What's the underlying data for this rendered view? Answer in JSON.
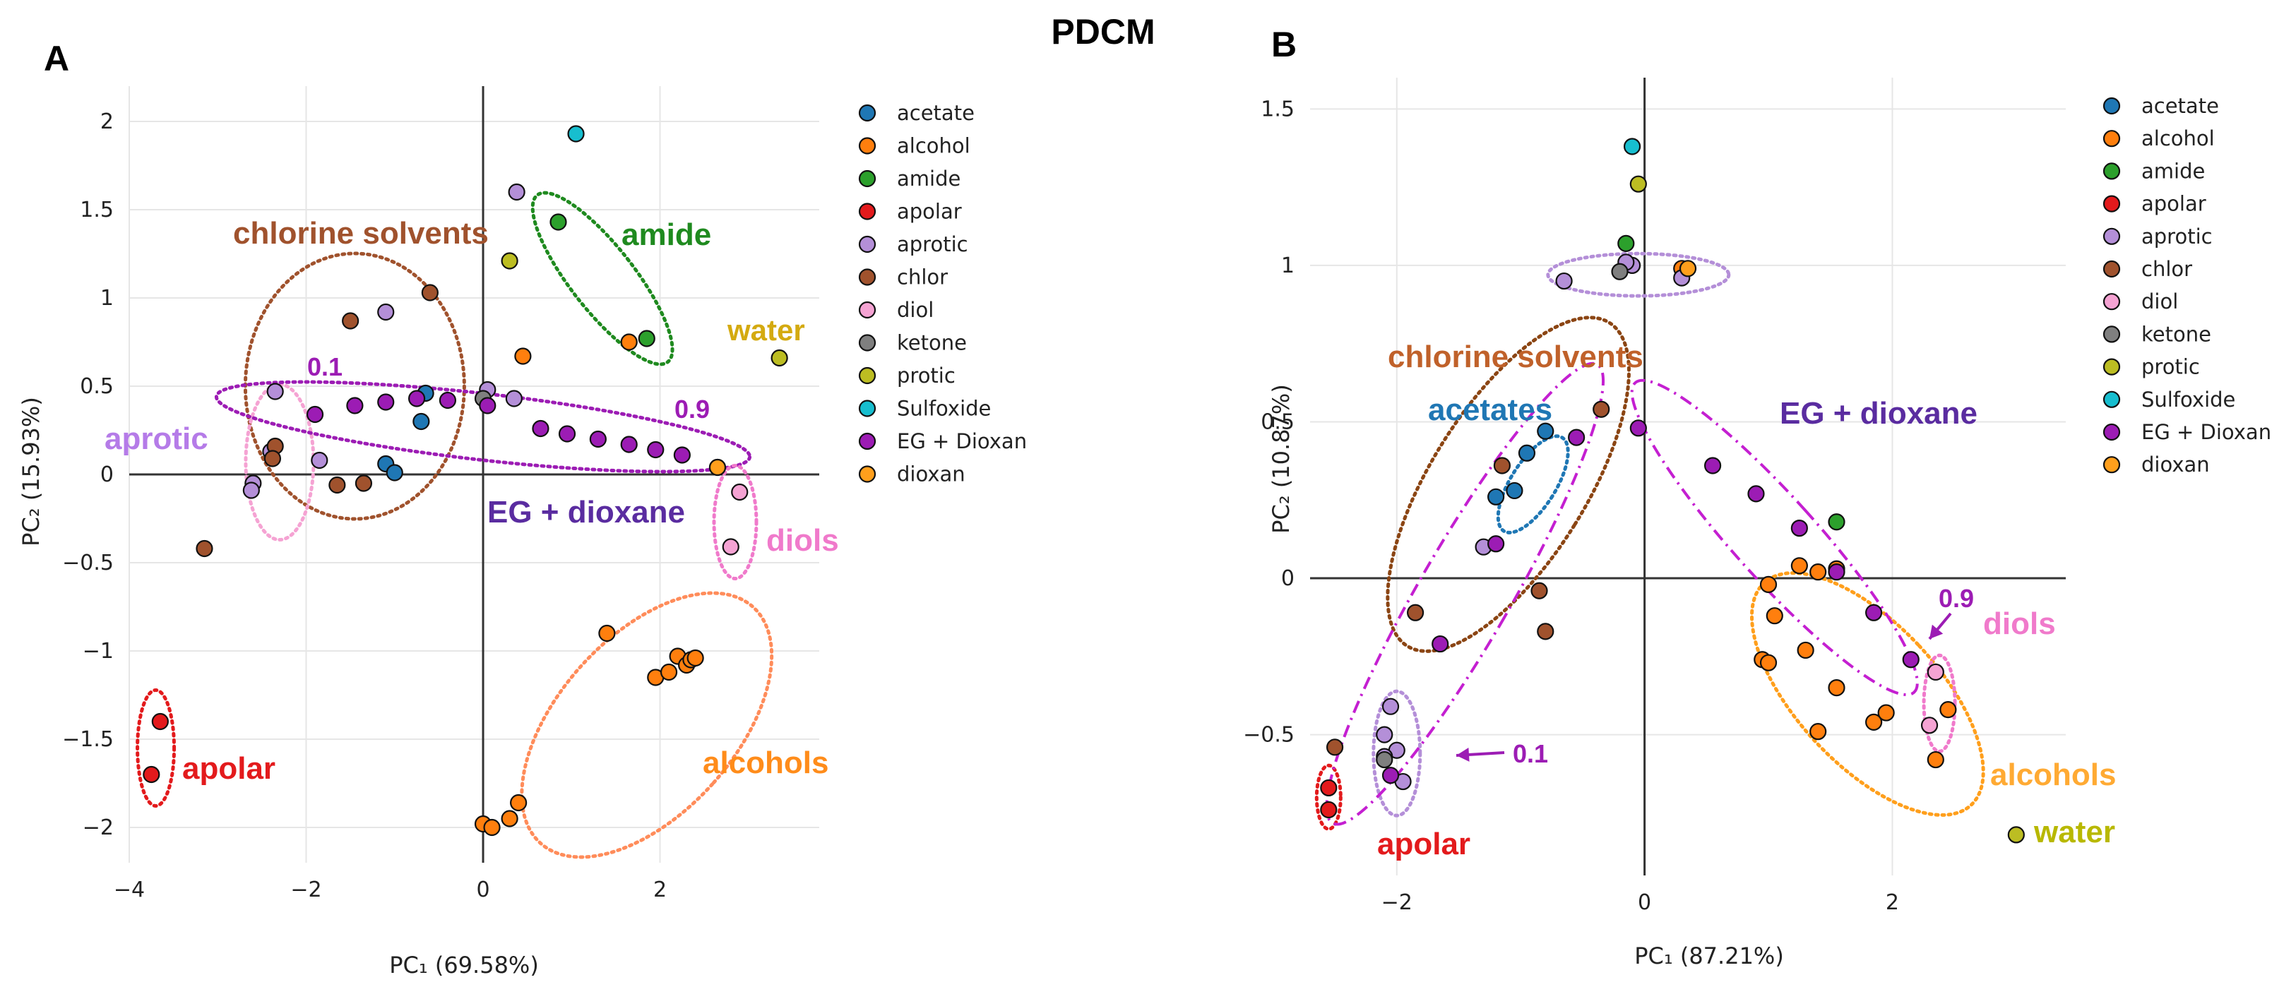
{
  "figure_title": "PDCM",
  "chart_data": [
    {
      "panel": "A",
      "type": "scatter",
      "xlabel": "PC₁ (69.58%)",
      "ylabel": "PC₂ (15.93%)",
      "xlim": [
        -4,
        3.8
      ],
      "ylim": [
        -2.2,
        2.2
      ],
      "xticks": [
        -4,
        -2,
        0,
        2
      ],
      "xtick_labels": [
        "−4",
        "−2",
        "0",
        "2"
      ],
      "yticks": [
        -2,
        -1.5,
        -1,
        -0.5,
        0,
        0.5,
        1,
        1.5,
        2
      ],
      "ytick_labels": [
        "−2",
        "−1.5",
        "−1",
        "−0.5",
        "0",
        "0.5",
        "1",
        "1.5",
        "2"
      ],
      "legend": [
        "acetate",
        "alcohol",
        "amide",
        "apolar",
        "aprotic",
        "chlor",
        "diol",
        "ketone",
        "protic",
        "Sulfoxide",
        "EG + Dioxan",
        "dioxan"
      ],
      "colors": {
        "acetate": "#1f77b4",
        "alcohol": "#ff7f0e",
        "amide": "#2ca02c",
        "apolar": "#e31a1c",
        "aprotic": "#b48fd8",
        "chlor": "#a0522d",
        "diol": "#f5a3d3",
        "ketone": "#7f7f7f",
        "protic": "#bcbd22",
        "Sulfoxide": "#17becf",
        "EG + Dioxan": "#9c1cb4",
        "dioxan": "#ff9f1c"
      },
      "series": [
        {
          "name": "acetate",
          "points": [
            [
              -0.65,
              0.46
            ],
            [
              -0.7,
              0.3
            ],
            [
              -1.1,
              0.06
            ],
            [
              -1.0,
              0.01
            ]
          ]
        },
        {
          "name": "alcohol",
          "points": [
            [
              0.45,
              0.67
            ],
            [
              1.4,
              -0.9
            ],
            [
              1.65,
              0.75
            ],
            [
              1.95,
              -1.15
            ],
            [
              2.1,
              -1.12
            ],
            [
              2.2,
              -1.03
            ],
            [
              2.3,
              -1.08
            ],
            [
              2.35,
              -1.05
            ],
            [
              2.4,
              -1.04
            ],
            [
              0,
              -1.98
            ],
            [
              0.1,
              -2.0
            ],
            [
              0.3,
              -1.95
            ],
            [
              0.4,
              -1.86
            ],
            [
              2.65,
              0.04
            ]
          ]
        },
        {
          "name": "amide",
          "points": [
            [
              0.85,
              1.43
            ],
            [
              1.85,
              0.77
            ]
          ]
        },
        {
          "name": "apolar",
          "points": [
            [
              -3.65,
              -1.4
            ],
            [
              -3.75,
              -1.7
            ]
          ]
        },
        {
          "name": "aprotic",
          "points": [
            [
              0.38,
              1.6
            ],
            [
              -1.1,
              0.92
            ],
            [
              -2.35,
              0.47
            ],
            [
              -2.4,
              0.13
            ],
            [
              -2.6,
              -0.05
            ],
            [
              -2.62,
              -0.09
            ],
            [
              -1.85,
              0.08
            ],
            [
              0.35,
              0.43
            ],
            [
              0.05,
              0.48
            ]
          ]
        },
        {
          "name": "chlor",
          "points": [
            [
              -1.5,
              0.87
            ],
            [
              -0.6,
              1.03
            ],
            [
              -3.15,
              -0.42
            ],
            [
              -2.35,
              0.16
            ],
            [
              -2.38,
              0.09
            ],
            [
              -1.65,
              -0.06
            ],
            [
              -1.35,
              -0.05
            ]
          ]
        },
        {
          "name": "diol",
          "points": [
            [
              2.9,
              -0.1
            ],
            [
              2.8,
              -0.41
            ]
          ]
        },
        {
          "name": "ketone",
          "points": [
            [
              0.0,
              0.43
            ]
          ]
        },
        {
          "name": "protic",
          "points": [
            [
              0.3,
              1.21
            ],
            [
              3.35,
              0.66
            ]
          ]
        },
        {
          "name": "Sulfoxide",
          "points": [
            [
              1.05,
              1.93
            ]
          ]
        },
        {
          "name": "EG + Dioxan",
          "points": [
            [
              -1.9,
              0.34
            ],
            [
              -1.45,
              0.39
            ],
            [
              -1.1,
              0.41
            ],
            [
              -0.75,
              0.43
            ],
            [
              -0.4,
              0.42
            ],
            [
              0.05,
              0.39
            ],
            [
              0.65,
              0.26
            ],
            [
              0.95,
              0.23
            ],
            [
              1.3,
              0.2
            ],
            [
              1.65,
              0.17
            ],
            [
              1.95,
              0.14
            ],
            [
              2.25,
              0.11
            ]
          ]
        },
        {
          "name": "dioxan",
          "points": [
            [
              2.65,
              0.04
            ]
          ]
        }
      ],
      "annotations": [
        {
          "text": "chlorine solvents",
          "color": "#a0522d"
        },
        {
          "text": "amide",
          "color": "#1f8a1f"
        },
        {
          "text": "water",
          "color": "#d4aa10"
        },
        {
          "text": "0.1",
          "color": "#9c1cb4"
        },
        {
          "text": "0.9",
          "color": "#9c1cb4"
        },
        {
          "text": "aprotic",
          "color": "#b57be8"
        },
        {
          "text": "EG + dioxane",
          "color": "#5a2ca0"
        },
        {
          "text": "diols",
          "color": "#f07acb"
        },
        {
          "text": "alcohols",
          "color": "#ff8c1a"
        },
        {
          "text": "apolar",
          "color": "#e31a1c"
        }
      ]
    },
    {
      "panel": "B",
      "type": "scatter",
      "xlabel": "PC₁ (87.21%)",
      "ylabel": "PC₂ (10.87%)",
      "xlim": [
        -2.7,
        3.4
      ],
      "ylim": [
        -0.95,
        1.6
      ],
      "xticks": [
        -2,
        0,
        2
      ],
      "xtick_labels": [
        "−2",
        "0",
        "2"
      ],
      "yticks": [
        -0.5,
        0,
        0.5,
        1,
        1.5
      ],
      "ytick_labels": [
        "−0.5",
        "0",
        "0.5",
        "1",
        "1.5"
      ],
      "legend": [
        "acetate",
        "alcohol",
        "amide",
        "apolar",
        "aprotic",
        "chlor",
        "diol",
        "ketone",
        "protic",
        "Sulfoxide",
        "EG + Dioxan",
        "dioxan"
      ],
      "colors": {
        "acetate": "#1f77b4",
        "alcohol": "#ff7f0e",
        "amide": "#2ca02c",
        "apolar": "#e31a1c",
        "aprotic": "#b48fd8",
        "chlor": "#a0522d",
        "diol": "#f5a3d3",
        "ketone": "#7f7f7f",
        "protic": "#bcbd22",
        "Sulfoxide": "#17becf",
        "EG + Dioxan": "#9c1cb4",
        "dioxan": "#ff9f1c"
      },
      "series": [
        {
          "name": "acetate",
          "points": [
            [
              -0.8,
              0.47
            ],
            [
              -0.95,
              0.4
            ],
            [
              -1.2,
              0.26
            ],
            [
              -1.05,
              0.28
            ]
          ]
        },
        {
          "name": "alcohol",
          "points": [
            [
              0.3,
              0.99
            ],
            [
              1.0,
              -0.02
            ],
            [
              1.05,
              -0.12
            ],
            [
              1.25,
              0.04
            ],
            [
              1.4,
              0.02
            ],
            [
              1.55,
              0.03
            ],
            [
              0.95,
              -0.26
            ],
            [
              1.0,
              -0.27
            ],
            [
              1.3,
              -0.23
            ],
            [
              1.55,
              -0.35
            ],
            [
              1.85,
              -0.46
            ],
            [
              1.95,
              -0.43
            ],
            [
              1.4,
              -0.49
            ],
            [
              2.35,
              -0.58
            ],
            [
              2.45,
              -0.42
            ]
          ]
        },
        {
          "name": "amide",
          "points": [
            [
              -0.15,
              1.07
            ],
            [
              1.55,
              0.18
            ]
          ]
        },
        {
          "name": "apolar",
          "points": [
            [
              -2.55,
              -0.67
            ],
            [
              -2.55,
              -0.74
            ]
          ]
        },
        {
          "name": "aprotic",
          "points": [
            [
              -0.1,
              1.0
            ],
            [
              0.3,
              0.96
            ],
            [
              -1.3,
              0.1
            ],
            [
              -2.05,
              -0.41
            ],
            [
              -2.1,
              -0.5
            ],
            [
              -2.0,
              -0.55
            ],
            [
              -1.95,
              -0.65
            ],
            [
              -2.1,
              -0.57
            ],
            [
              -0.65,
              0.95
            ],
            [
              -0.15,
              1.01
            ]
          ]
        },
        {
          "name": "chlor",
          "points": [
            [
              -2.5,
              -0.54
            ],
            [
              -1.85,
              -0.11
            ],
            [
              -1.15,
              0.36
            ],
            [
              -0.85,
              -0.04
            ],
            [
              -0.8,
              -0.17
            ],
            [
              -0.35,
              0.54
            ]
          ]
        },
        {
          "name": "diol",
          "points": [
            [
              2.35,
              -0.3
            ],
            [
              2.3,
              -0.47
            ]
          ]
        },
        {
          "name": "ketone",
          "points": [
            [
              -0.2,
              0.98
            ],
            [
              -2.1,
              -0.58
            ]
          ]
        },
        {
          "name": "protic",
          "points": [
            [
              -0.05,
              1.26
            ],
            [
              3.0,
              -0.82
            ]
          ]
        },
        {
          "name": "Sulfoxide",
          "points": [
            [
              -0.1,
              1.38
            ]
          ]
        },
        {
          "name": "EG + Dioxan",
          "points": [
            [
              -2.05,
              -0.63
            ],
            [
              -1.65,
              -0.21
            ],
            [
              -1.2,
              0.11
            ],
            [
              -0.55,
              0.45
            ],
            [
              -0.05,
              0.48
            ],
            [
              0.55,
              0.36
            ],
            [
              0.9,
              0.27
            ],
            [
              1.25,
              0.16
            ],
            [
              1.55,
              0.02
            ],
            [
              1.85,
              -0.11
            ],
            [
              2.15,
              -0.26
            ]
          ]
        },
        {
          "name": "dioxan",
          "points": [
            [
              0.35,
              0.99
            ]
          ]
        }
      ],
      "annotations": [
        {
          "text": "chlorine solvents",
          "color": "#c0612a"
        },
        {
          "text": "acetates",
          "color": "#1f77b4"
        },
        {
          "text": "EG + dioxane",
          "color": "#5a2ca0"
        },
        {
          "text": "0.9",
          "color": "#9c1cb4"
        },
        {
          "text": "diols",
          "color": "#f07acb"
        },
        {
          "text": "0.1",
          "color": "#9c1cb4"
        },
        {
          "text": "alcohols",
          "color": "#ffaa33"
        },
        {
          "text": "water",
          "color": "#b8b800"
        },
        {
          "text": "apolar",
          "color": "#e31a1c"
        }
      ]
    }
  ]
}
